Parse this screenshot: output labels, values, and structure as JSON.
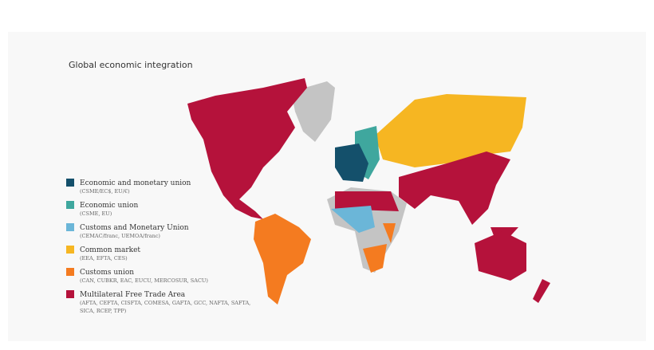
{
  "title": "Global economic integration",
  "legend": [
    {
      "label": "Economic and monetary union",
      "note": "(CSME/EC$, EU/€)",
      "color": "#14506b"
    },
    {
      "label": "Economic union",
      "note": "(CSME, EU)",
      "color": "#3fa79e"
    },
    {
      "label": "Customs and Monetary Union",
      "note": "(CEMAC/franc, UEMOA/franc)",
      "color": "#6bb6d8"
    },
    {
      "label": "Common market",
      "note": "(EEA, EFTA, CES)",
      "color": "#f6b622"
    },
    {
      "label": "Customs union",
      "note": "(CAN, CUBKR, EAC, EUCU, MERCOSUR, SACU)",
      "color": "#f47b20"
    },
    {
      "label": "Multilateral Free Trade Area",
      "note": "(AFTA, CEFTA, CISFTA, COMESA, GAFTA, GCC, NAFTA, SAFTA, SICA, RCEP, TPP)",
      "color": "#b5123b"
    }
  ]
}
